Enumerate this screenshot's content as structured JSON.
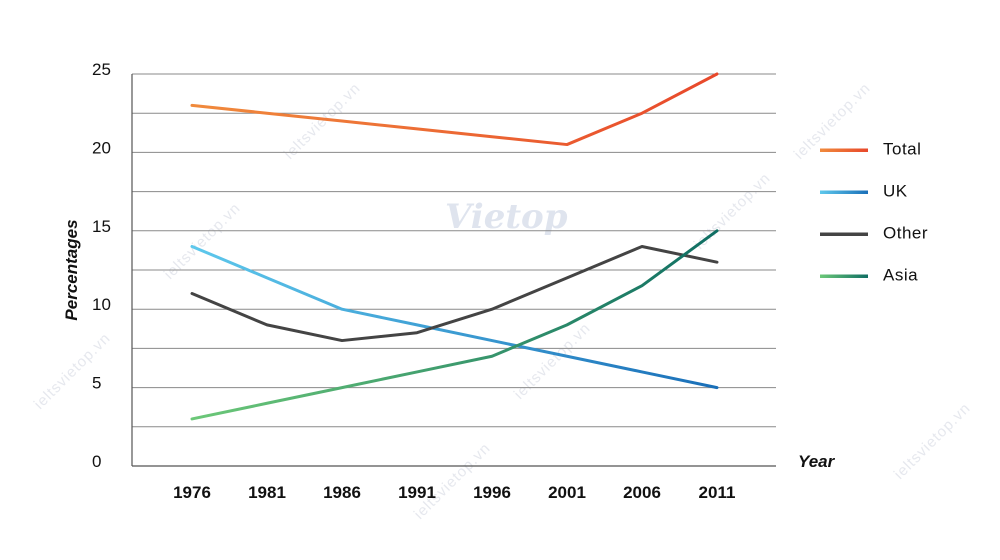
{
  "chart_data": {
    "type": "line",
    "title": "",
    "xlabel": "Year",
    "ylabel": "Percentages",
    "categories": [
      "1976",
      "1981",
      "1986",
      "1991",
      "1996",
      "2001",
      "2006",
      "2011"
    ],
    "ylim": [
      0,
      25
    ],
    "yticks": [
      0,
      5,
      10,
      15,
      20,
      25
    ],
    "grid": true,
    "legend_position": "right",
    "series": [
      {
        "name": "Total",
        "colors": [
          "#f08a3c",
          "#e8482b"
        ],
        "values": [
          23,
          22.5,
          22,
          21.5,
          21,
          20.5,
          22.5,
          25
        ]
      },
      {
        "name": "UK",
        "colors": [
          "#5ec8ec",
          "#1a6fb8"
        ],
        "values": [
          14,
          12,
          10,
          9,
          8,
          7,
          6,
          5
        ]
      },
      {
        "name": "Other",
        "colors": [
          "#444444",
          "#444444"
        ],
        "values": [
          11,
          9,
          8,
          8.5,
          10,
          12,
          14,
          13
        ]
      },
      {
        "name": "Asia",
        "colors": [
          "#6cc878",
          "#0f6e63"
        ],
        "values": [
          3,
          4,
          5,
          6,
          7,
          9,
          11.5,
          15
        ]
      }
    ]
  },
  "watermark": {
    "logo_text": "Vietop",
    "site_text": "ieltsvietop.vn"
  }
}
